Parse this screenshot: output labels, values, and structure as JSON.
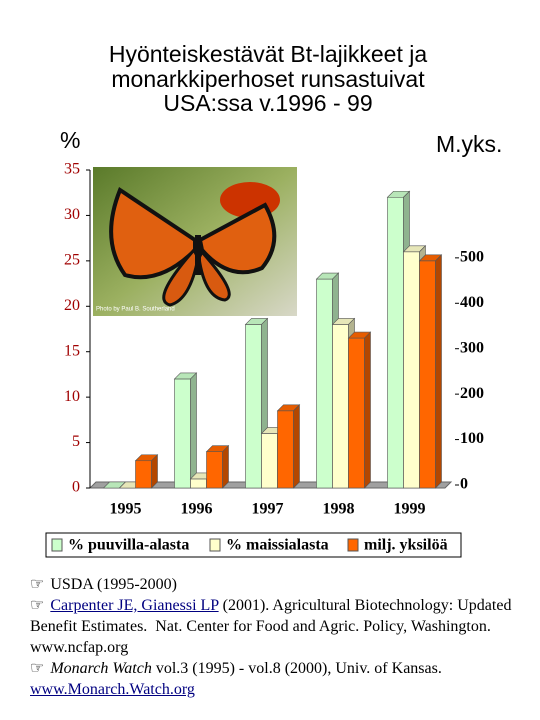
{
  "chart_data": {
    "type": "bar",
    "title": [
      "Hyönteiskestävät Bt-lajikkeet ja",
      "monarkkiperhoset runsastuivat",
      "USA:ssa v.1996 - 99"
    ],
    "ylabel": "%",
    "y2label": "M.yks.",
    "photo_credit": "Photo by Paul B. Southerland",
    "categories": [
      "1995",
      "1996",
      "1997",
      "1998",
      "1999"
    ],
    "series": [
      {
        "name": "% puuvilla-alasta",
        "color": "#ccffcc",
        "values": [
          0,
          12,
          18,
          23,
          32
        ]
      },
      {
        "name": "% maissialasta",
        "color": "#ffffcc",
        "values": [
          0,
          1,
          6,
          18,
          26
        ]
      },
      {
        "name": "milj. yksilöä",
        "color": "#ff6600",
        "axis": "y2",
        "values": [
          60,
          80,
          170,
          330,
          500
        ]
      }
    ],
    "ylim": [
      0,
      35
    ],
    "yticks": [
      0,
      5,
      10,
      15,
      20,
      25,
      30,
      35
    ],
    "y2lim": [
      0,
      700
    ],
    "y2ticks": [
      0,
      100,
      200,
      300,
      400,
      500
    ],
    "legend": "bottom"
  },
  "references": {
    "bullet": "☞",
    "items": [
      [
        {
          "text": "USDA (1995-2000)"
        }
      ],
      [
        {
          "text": "Carpenter JE, Gianessi LP",
          "link": true
        },
        {
          "text": " (2001). Agricultural Biotechnology: Updated Benefit Estimates.  Nat. Center for Food and Agric. Policy, Washington.        "
        },
        {
          "text": "www.ncfap.org"
        }
      ],
      [
        {
          "text": "Monarch Watch",
          "italic": true
        },
        {
          "text": " vol.3 (1995) - vol.8 (2000), Univ. of Kansas. "
        },
        {
          "text": "www.Monarch.Watch.org",
          "link": true
        }
      ]
    ]
  }
}
